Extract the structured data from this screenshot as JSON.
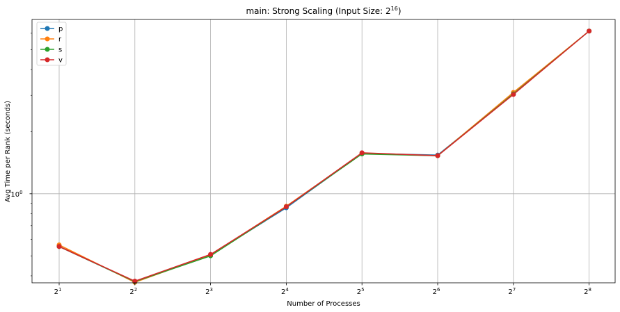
{
  "chart_data": {
    "type": "line",
    "title": "main: Strong Scaling (Input Size: 2",
    "title_exponent": "16",
    "title_suffix": ")",
    "xlabel": "Number of Processes",
    "ylabel": "Avg Time per Rank (seconds)",
    "x_scale": "log2",
    "y_scale": "log",
    "x": [
      2,
      4,
      8,
      16,
      32,
      64,
      128,
      256
    ],
    "x_tick_labels": [
      {
        "base": "2",
        "exp": "1"
      },
      {
        "base": "2",
        "exp": "2"
      },
      {
        "base": "2",
        "exp": "3"
      },
      {
        "base": "2",
        "exp": "4"
      },
      {
        "base": "2",
        "exp": "5"
      },
      {
        "base": "2",
        "exp": "6"
      },
      {
        "base": "2",
        "exp": "7"
      },
      {
        "base": "2",
        "exp": "8"
      }
    ],
    "y_major_tick": {
      "value": 1,
      "base": "10",
      "exp": "0"
    },
    "ylim": [
      0.37,
      7.0
    ],
    "grid": true,
    "legend_position": "top-left",
    "series": [
      {
        "name": "p",
        "color": "#1f77b4",
        "values": [
          0.555,
          0.375,
          0.505,
          0.855,
          1.57,
          1.54,
          3.05,
          6.15
        ]
      },
      {
        "name": "r",
        "color": "#ff7f0e",
        "values": [
          0.565,
          0.372,
          0.505,
          0.87,
          1.57,
          1.53,
          3.1,
          6.15
        ]
      },
      {
        "name": "s",
        "color": "#2ca02c",
        "values": [
          0.555,
          0.375,
          0.5,
          0.865,
          1.56,
          1.53,
          3.05,
          6.15
        ]
      },
      {
        "name": "v",
        "color": "#d62728",
        "values": [
          0.555,
          0.377,
          0.508,
          0.865,
          1.58,
          1.53,
          3.03,
          6.15
        ]
      }
    ]
  }
}
